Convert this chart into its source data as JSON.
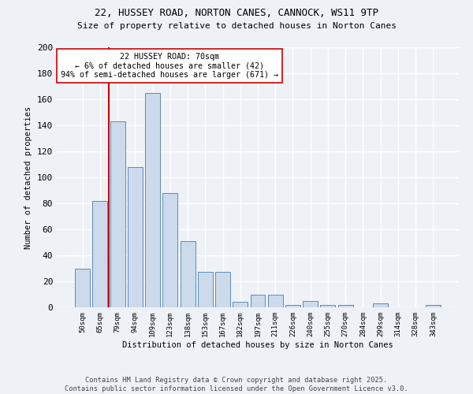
{
  "title1": "22, HUSSEY ROAD, NORTON CANES, CANNOCK, WS11 9TP",
  "title2": "Size of property relative to detached houses in Norton Canes",
  "xlabel": "Distribution of detached houses by size in Norton Canes",
  "ylabel": "Number of detached properties",
  "bar_color": "#ccdaeb",
  "bar_edge_color": "#5b8db8",
  "categories": [
    "50sqm",
    "65sqm",
    "79sqm",
    "94sqm",
    "109sqm",
    "123sqm",
    "138sqm",
    "153sqm",
    "167sqm",
    "182sqm",
    "197sqm",
    "211sqm",
    "226sqm",
    "240sqm",
    "255sqm",
    "270sqm",
    "284sqm",
    "299sqm",
    "314sqm",
    "328sqm",
    "343sqm"
  ],
  "values": [
    30,
    82,
    143,
    108,
    165,
    88,
    51,
    27,
    27,
    4,
    10,
    10,
    2,
    5,
    2,
    2,
    0,
    3,
    0,
    0,
    2
  ],
  "ylim": [
    0,
    200
  ],
  "yticks": [
    0,
    20,
    40,
    60,
    80,
    100,
    120,
    140,
    160,
    180,
    200
  ],
  "vline_x": 1.5,
  "vline_color": "#cc0000",
  "annotation_text": "22 HUSSEY ROAD: 70sqm\n← 6% of detached houses are smaller (42)\n94% of semi-detached houses are larger (671) →",
  "annotation_box_color": "#ffffff",
  "annotation_box_edge": "#cc0000",
  "footer1": "Contains HM Land Registry data © Crown copyright and database right 2025.",
  "footer2": "Contains public sector information licensed under the Open Government Licence v3.0.",
  "background_color": "#eef2f7",
  "grid_color": "#ffffff"
}
